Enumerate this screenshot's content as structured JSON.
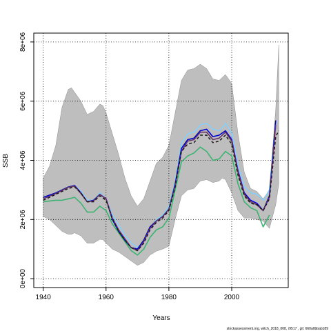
{
  "chart_data": {
    "type": "line",
    "title": "",
    "xlabel": "Years",
    "ylabel": "SSB",
    "xlim": [
      1937,
      2018
    ],
    "ylim": [
      -300000,
      8300000
    ],
    "x_ticks": [
      1940,
      1960,
      1980,
      2000
    ],
    "y_ticks": [
      0,
      2000000,
      4000000,
      6000000,
      8000000
    ],
    "x_tick_labels": [
      "1940",
      "1960",
      "1980",
      "2000"
    ],
    "y_tick_labels": [
      "0e+00",
      "2e+06",
      "4e+06",
      "6e+06",
      "8e+06"
    ],
    "grid": true,
    "band": {
      "color": "#bebebe",
      "x": [
        1940,
        1942,
        1944,
        1946,
        1948,
        1949,
        1950,
        1952,
        1954,
        1956,
        1958,
        1959,
        1960,
        1962,
        1964,
        1966,
        1968,
        1970,
        1972,
        1974,
        1976,
        1978,
        1980,
        1982,
        1984,
        1986,
        1988,
        1990,
        1992,
        1994,
        1996,
        1997,
        1998,
        2000,
        2002,
        2004,
        2006,
        2008,
        2010,
        2012,
        2014,
        2015
      ],
      "lower": [
        2100000,
        2000000,
        1800000,
        1600000,
        1500000,
        1500000,
        1550000,
        1450000,
        1200000,
        1200000,
        1330000,
        1320000,
        1200000,
        1000000,
        900000,
        750000,
        600000,
        450000,
        550000,
        800000,
        930000,
        1000000,
        1100000,
        2000000,
        2800000,
        3000000,
        3050000,
        3300000,
        3350000,
        3250000,
        3300000,
        3400000,
        3350000,
        2900000,
        2300000,
        2050000,
        2050000,
        2000000,
        1950000,
        1700000,
        2500000,
        3200000
      ],
      "upper": [
        3400000,
        3800000,
        4500000,
        5800000,
        6400000,
        6450000,
        6300000,
        6000000,
        5550000,
        5650000,
        5900000,
        5850000,
        5600000,
        4900000,
        4200000,
        3400000,
        2800000,
        2450000,
        2700000,
        3300000,
        3900000,
        4100000,
        4500000,
        5600000,
        6700000,
        7050000,
        7100000,
        7250000,
        7100000,
        6750000,
        6700000,
        6800000,
        6900000,
        6600000,
        4900000,
        3600000,
        3050000,
        2950000,
        2700000,
        3000000,
        5700000,
        7900000
      ]
    },
    "series": [
      {
        "color": "#87cefa",
        "style": "solid",
        "x": [
          1940,
          1944,
          1948,
          1950,
          1952,
          1954,
          1956,
          1958,
          1960,
          1962,
          1964,
          1966,
          1968,
          1970,
          1972,
          1974,
          1976,
          1978,
          1980,
          1982,
          1984,
          1986,
          1988,
          1990,
          1992,
          1994,
          1996,
          1998,
          2000,
          2002,
          2004,
          2006,
          2008,
          2010,
          2012,
          2014
        ],
        "y": [
          2700000,
          2900000,
          3100000,
          3150000,
          2950000,
          2650000,
          2650000,
          2900000,
          2700000,
          2150000,
          1800000,
          1450000,
          1200000,
          1050000,
          1250000,
          1700000,
          2000000,
          2150000,
          2450000,
          3300000,
          4600000,
          4900000,
          4950000,
          5200000,
          5250000,
          5050000,
          5000000,
          5250000,
          4900000,
          3800000,
          3100000,
          2900000,
          2850000,
          2650000,
          3000000,
          5300000
        ]
      },
      {
        "color": "#3cb371",
        "style": "solid",
        "x": [
          1940,
          1944,
          1946,
          1948,
          1950,
          1952,
          1954,
          1956,
          1958,
          1960,
          1962,
          1964,
          1966,
          1968,
          1970,
          1972,
          1974,
          1976,
          1978,
          1980,
          1982,
          1984,
          1986,
          1988,
          1990,
          1992,
          1994,
          1996,
          1998,
          2000,
          2002,
          2004,
          2006,
          2008,
          2010,
          2012
        ],
        "y": [
          2600000,
          2650000,
          2650000,
          2700000,
          2750000,
          2550000,
          2250000,
          2250000,
          2450000,
          2300000,
          1850000,
          1550000,
          1250000,
          950000,
          800000,
          1000000,
          1400000,
          1650000,
          1750000,
          2050000,
          3000000,
          3950000,
          4150000,
          4250000,
          4450000,
          4300000,
          4000000,
          4050000,
          4300000,
          4150000,
          3200000,
          2600000,
          2400000,
          2300000,
          1750000,
          2150000
        ]
      },
      {
        "color": "#0000cd",
        "style": "solid",
        "x": [
          1940,
          1944,
          1948,
          1950,
          1952,
          1954,
          1956,
          1958,
          1960,
          1962,
          1964,
          1966,
          1968,
          1970,
          1972,
          1974,
          1976,
          1978,
          1980,
          1982,
          1984,
          1986,
          1988,
          1990,
          1992,
          1994,
          1996,
          1998,
          2000,
          2002,
          2004,
          2006,
          2008,
          2010,
          2012,
          2014
        ],
        "y": [
          2750000,
          2900000,
          3100000,
          3150000,
          2900000,
          2600000,
          2650000,
          2850000,
          2700000,
          2000000,
          1600000,
          1300000,
          1050000,
          1000000,
          1300000,
          1750000,
          1950000,
          2100000,
          2350000,
          3200000,
          4400000,
          4700000,
          4750000,
          5000000,
          5050000,
          4800000,
          4850000,
          5000000,
          4700000,
          3650000,
          2900000,
          2650000,
          2550000,
          2300000,
          2800000,
          5350000
        ]
      },
      {
        "color": "#663366",
        "style": "solid",
        "x": [
          1940,
          1944,
          1948,
          1950,
          1952,
          1954,
          1956,
          1958,
          1960,
          1962,
          1964,
          1966,
          1968,
          1970,
          1972,
          1974,
          1976,
          1978,
          1980,
          1982,
          1984,
          1986,
          1988,
          1990,
          1992,
          1994,
          1996,
          1998,
          2000,
          2002,
          2004,
          2006,
          2008,
          2010,
          2012,
          2014
        ],
        "y": [
          2700000,
          2880000,
          3090000,
          3130000,
          2880000,
          2600000,
          2630000,
          2850000,
          2700000,
          2050000,
          1650000,
          1350000,
          1050000,
          950000,
          1250000,
          1700000,
          1950000,
          2100000,
          2350000,
          3150000,
          4300000,
          4650000,
          4700000,
          4950000,
          4950000,
          4700000,
          4750000,
          4950000,
          4650000,
          3600000,
          2850000,
          2600000,
          2500000,
          2300000,
          2750000,
          5200000
        ]
      },
      {
        "color": "#1a1a1a",
        "style": "dashed",
        "x": [
          1940,
          1944,
          1948,
          1950,
          1952,
          1954,
          1956,
          1958,
          1960,
          1962,
          1964,
          1966,
          1968,
          1970,
          1972,
          1974,
          1976,
          1978,
          1980,
          1982,
          1984,
          1986,
          1988,
          1990,
          1992,
          1994,
          1996,
          1998,
          2000,
          2002,
          2004,
          2006,
          2008,
          2010,
          2012,
          2014,
          2015
        ],
        "y": [
          2650000,
          2850000,
          3050000,
          3100000,
          2900000,
          2600000,
          2600000,
          2800000,
          2650000,
          2050000,
          1600000,
          1300000,
          1050000,
          950000,
          1200000,
          1650000,
          1900000,
          2050000,
          2300000,
          3100000,
          4300000,
          4550000,
          4600000,
          4850000,
          4850000,
          4600000,
          4650000,
          4850000,
          4550000,
          3500000,
          2800000,
          2550000,
          2500000,
          2300000,
          2700000,
          4800000,
          5000000
        ]
      }
    ]
  },
  "footer": {
    "text": "stockassessment.org, witch_2018_008, r9517 , git: 660a0bbab189"
  }
}
